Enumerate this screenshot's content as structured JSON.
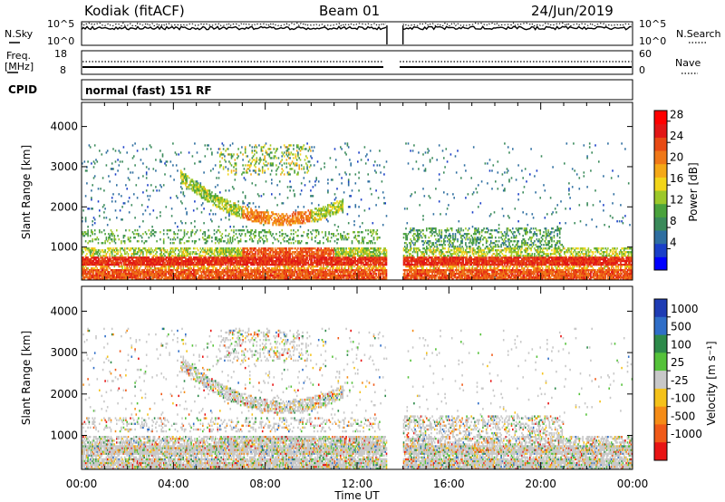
{
  "header": {
    "station": "Kodiak (fitACF)",
    "beam": "Beam 01",
    "date": "24/Jun/2019"
  },
  "strip_panels": {
    "nsky": {
      "label": "N.Sky",
      "ticks": [
        "10^5",
        "10^0"
      ]
    },
    "nsearch": {
      "label": "N.Search",
      "ticks": [
        "10^5",
        "10^0"
      ]
    },
    "freq": {
      "label_line1": "Freq.",
      "label_line2": "[MHz]",
      "ticks": [
        "18",
        "8"
      ]
    },
    "nave": {
      "label": "Nave",
      "ticks": [
        "60",
        "0"
      ]
    },
    "cpid": {
      "label": "CPID",
      "value": "normal (fast) 151 RF"
    }
  },
  "chart_data": [
    {
      "type": "heatmap",
      "title": "",
      "ylabel": "Slant Range [km]",
      "xlabel": "",
      "x_ticks": [
        "00:00",
        "04:00",
        "08:00",
        "12:00",
        "16:00",
        "20:00",
        "00:00"
      ],
      "y_ticks": [
        "1000",
        "2000",
        "3000",
        "4000"
      ],
      "ylim": [
        180,
        4600
      ],
      "xlim_hours": [
        0,
        24
      ],
      "data_gap_hours": [
        13.3,
        14.0
      ],
      "colorbar": {
        "label": "Power [dB]",
        "ticks": [
          "4",
          "8",
          "12",
          "16",
          "20",
          "24",
          "28"
        ],
        "range": [
          0,
          30
        ],
        "colors": [
          "#0000ff",
          "#1a3fc8",
          "#2e6ea0",
          "#3a8a5a",
          "#4aa23c",
          "#9cc82a",
          "#f2d51a",
          "#f5a817",
          "#f07818",
          "#e84a14",
          "#e21616",
          "#ff0000"
        ]
      }
    },
    {
      "type": "heatmap",
      "title": "",
      "ylabel": "Slant Range [km]",
      "xlabel": "Time UT",
      "x_ticks": [
        "00:00",
        "04:00",
        "08:00",
        "12:00",
        "16:00",
        "20:00",
        "00:00"
      ],
      "y_ticks": [
        "1000",
        "2000",
        "3000",
        "4000"
      ],
      "ylim": [
        180,
        4600
      ],
      "xlim_hours": [
        0,
        24
      ],
      "data_gap_hours": [
        13.3,
        14.0
      ],
      "colorbar": {
        "label": "Velocity [m s⁻¹]",
        "ticks": [
          "1000",
          "500",
          "100",
          "25",
          "-25",
          "-100",
          "-500",
          "-1000"
        ],
        "colors": [
          "#1e3cb4",
          "#2f6ec8",
          "#2d8a4a",
          "#55c23a",
          "#c8c8c8",
          "#f5c21a",
          "#f58c17",
          "#f05a18",
          "#e81414"
        ]
      }
    }
  ]
}
